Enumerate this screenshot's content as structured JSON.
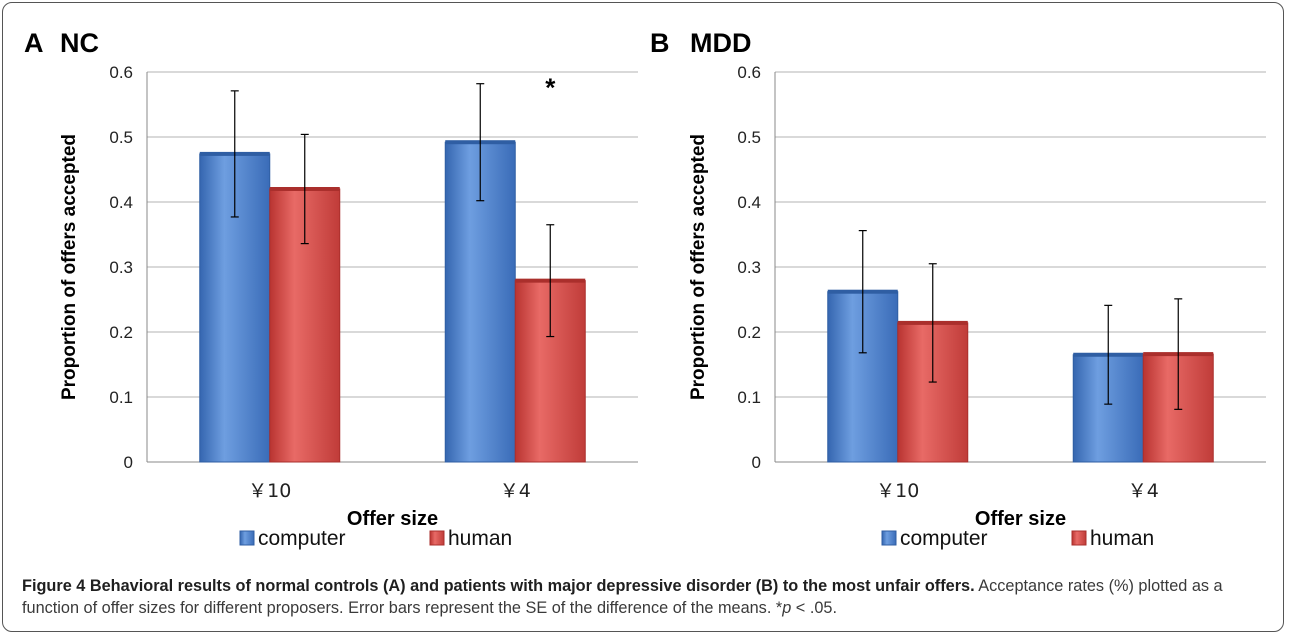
{
  "colors": {
    "computer": "#4a7ecd",
    "human": "#d94a47",
    "grid": "#b3b3b3",
    "text": "#111111"
  },
  "chart_data": [
    {
      "type": "bar",
      "panel_letter": "A",
      "title": "NC",
      "ylabel": "Proportion of offers accepted",
      "xlabel": "Offer size",
      "ylim": [
        0,
        0.6
      ],
      "yticks": [
        "0",
        "0.1",
        "0.2",
        "0.3",
        "0.4",
        "0.5",
        "0.6"
      ],
      "categories": [
        "￥10",
        "￥4"
      ],
      "series": [
        {
          "name": "computer",
          "values": [
            0.474,
            0.492
          ],
          "errors": [
            0.097,
            0.09
          ]
        },
        {
          "name": "human",
          "values": [
            0.42,
            0.279
          ],
          "errors": [
            0.084,
            0.086
          ]
        }
      ],
      "annotations": [
        {
          "text": "*",
          "category": "￥4"
        }
      ],
      "grid": true,
      "legend": "bottom"
    },
    {
      "type": "bar",
      "panel_letter": "B",
      "title": "MDD",
      "ylabel": "Proportion of offers accepted",
      "xlabel": "Offer size",
      "ylim": [
        0,
        0.6
      ],
      "yticks": [
        "0",
        "0.1",
        "0.2",
        "0.3",
        "0.4",
        "0.5",
        "0.6"
      ],
      "categories": [
        "￥10",
        "￥4"
      ],
      "series": [
        {
          "name": "computer",
          "values": [
            0.262,
            0.165
          ],
          "errors": [
            0.094,
            0.076
          ]
        },
        {
          "name": "human",
          "values": [
            0.214,
            0.166
          ],
          "errors": [
            0.091,
            0.085
          ]
        }
      ],
      "annotations": [],
      "grid": true,
      "legend": "bottom"
    }
  ],
  "caption": {
    "bold": "Figure 4 Behavioral results of normal controls (A) and patients with major depressive disorder (B) to the most unfair offers.",
    "text": " Acceptance rates (%) plotted as a function of offer sizes for different proposers. Error bars represent the SE of the difference of the means. *",
    "p_symbol": "p",
    "text_end": " < .05."
  }
}
